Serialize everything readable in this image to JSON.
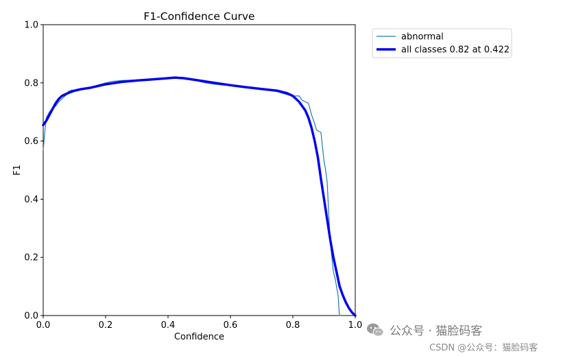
{
  "chart_data": {
    "type": "line",
    "title": "F1-Confidence Curve",
    "xlabel": "Confidence",
    "ylabel": "F1",
    "xlim": [
      0,
      1
    ],
    "ylim": [
      0,
      1
    ],
    "xticks": [
      "0.0",
      "0.2",
      "0.4",
      "0.6",
      "0.8",
      "1.0"
    ],
    "yticks": [
      "0.0",
      "0.2",
      "0.4",
      "0.6",
      "0.8",
      "1.0"
    ],
    "legend_position": "outside-top-right",
    "grid": false,
    "series": [
      {
        "name": "abnormal",
        "color": "#1f77b4",
        "line_width": "thin",
        "x": [
          0.0,
          0.005,
          0.01,
          0.02,
          0.03,
          0.04,
          0.05,
          0.06,
          0.07,
          0.08,
          0.09,
          0.1,
          0.12,
          0.15,
          0.2,
          0.22,
          0.25,
          0.3,
          0.35,
          0.4,
          0.43,
          0.45,
          0.48,
          0.5,
          0.52,
          0.55,
          0.6,
          0.65,
          0.7,
          0.75,
          0.78,
          0.8,
          0.82,
          0.83,
          0.84,
          0.85,
          0.86,
          0.87,
          0.875,
          0.88,
          0.89,
          0.9,
          0.905,
          0.91,
          0.915,
          0.92,
          0.925,
          0.93,
          0.935,
          0.94,
          0.945,
          0.948,
          0.95,
          0.952
        ],
        "y": [
          0.57,
          0.63,
          0.68,
          0.7,
          0.715,
          0.72,
          0.735,
          0.745,
          0.755,
          0.77,
          0.775,
          0.775,
          0.78,
          0.785,
          0.8,
          0.805,
          0.808,
          0.81,
          0.812,
          0.815,
          0.82,
          0.815,
          0.81,
          0.805,
          0.8,
          0.795,
          0.79,
          0.785,
          0.78,
          0.77,
          0.76,
          0.755,
          0.755,
          0.74,
          0.735,
          0.73,
          0.69,
          0.66,
          0.64,
          0.635,
          0.63,
          0.53,
          0.5,
          0.46,
          0.35,
          0.25,
          0.2,
          0.15,
          0.13,
          0.1,
          0.07,
          0.02,
          0.0,
          0.0
        ]
      },
      {
        "name": "all classes 0.82 at 0.422",
        "color": "#0000ee",
        "line_width": "thick",
        "x": [
          0.0,
          0.01,
          0.02,
          0.03,
          0.04,
          0.05,
          0.06,
          0.08,
          0.1,
          0.12,
          0.15,
          0.2,
          0.25,
          0.3,
          0.35,
          0.4,
          0.422,
          0.45,
          0.5,
          0.55,
          0.6,
          0.65,
          0.7,
          0.75,
          0.78,
          0.8,
          0.82,
          0.84,
          0.85,
          0.86,
          0.87,
          0.88,
          0.89,
          0.9,
          0.91,
          0.92,
          0.93,
          0.94,
          0.95,
          0.96,
          0.97,
          0.98,
          0.99,
          1.0
        ],
        "y": [
          0.655,
          0.67,
          0.69,
          0.71,
          0.73,
          0.745,
          0.755,
          0.765,
          0.773,
          0.778,
          0.783,
          0.795,
          0.803,
          0.808,
          0.812,
          0.816,
          0.818,
          0.816,
          0.808,
          0.8,
          0.792,
          0.785,
          0.779,
          0.773,
          0.765,
          0.755,
          0.735,
          0.705,
          0.68,
          0.645,
          0.6,
          0.545,
          0.47,
          0.4,
          0.33,
          0.26,
          0.2,
          0.15,
          0.1,
          0.07,
          0.045,
          0.025,
          0.01,
          0.0
        ]
      }
    ]
  },
  "watermark": {
    "line1": "公众号 · 猫脸码客",
    "line2": "CSDN @公众号：猫脸码客"
  }
}
